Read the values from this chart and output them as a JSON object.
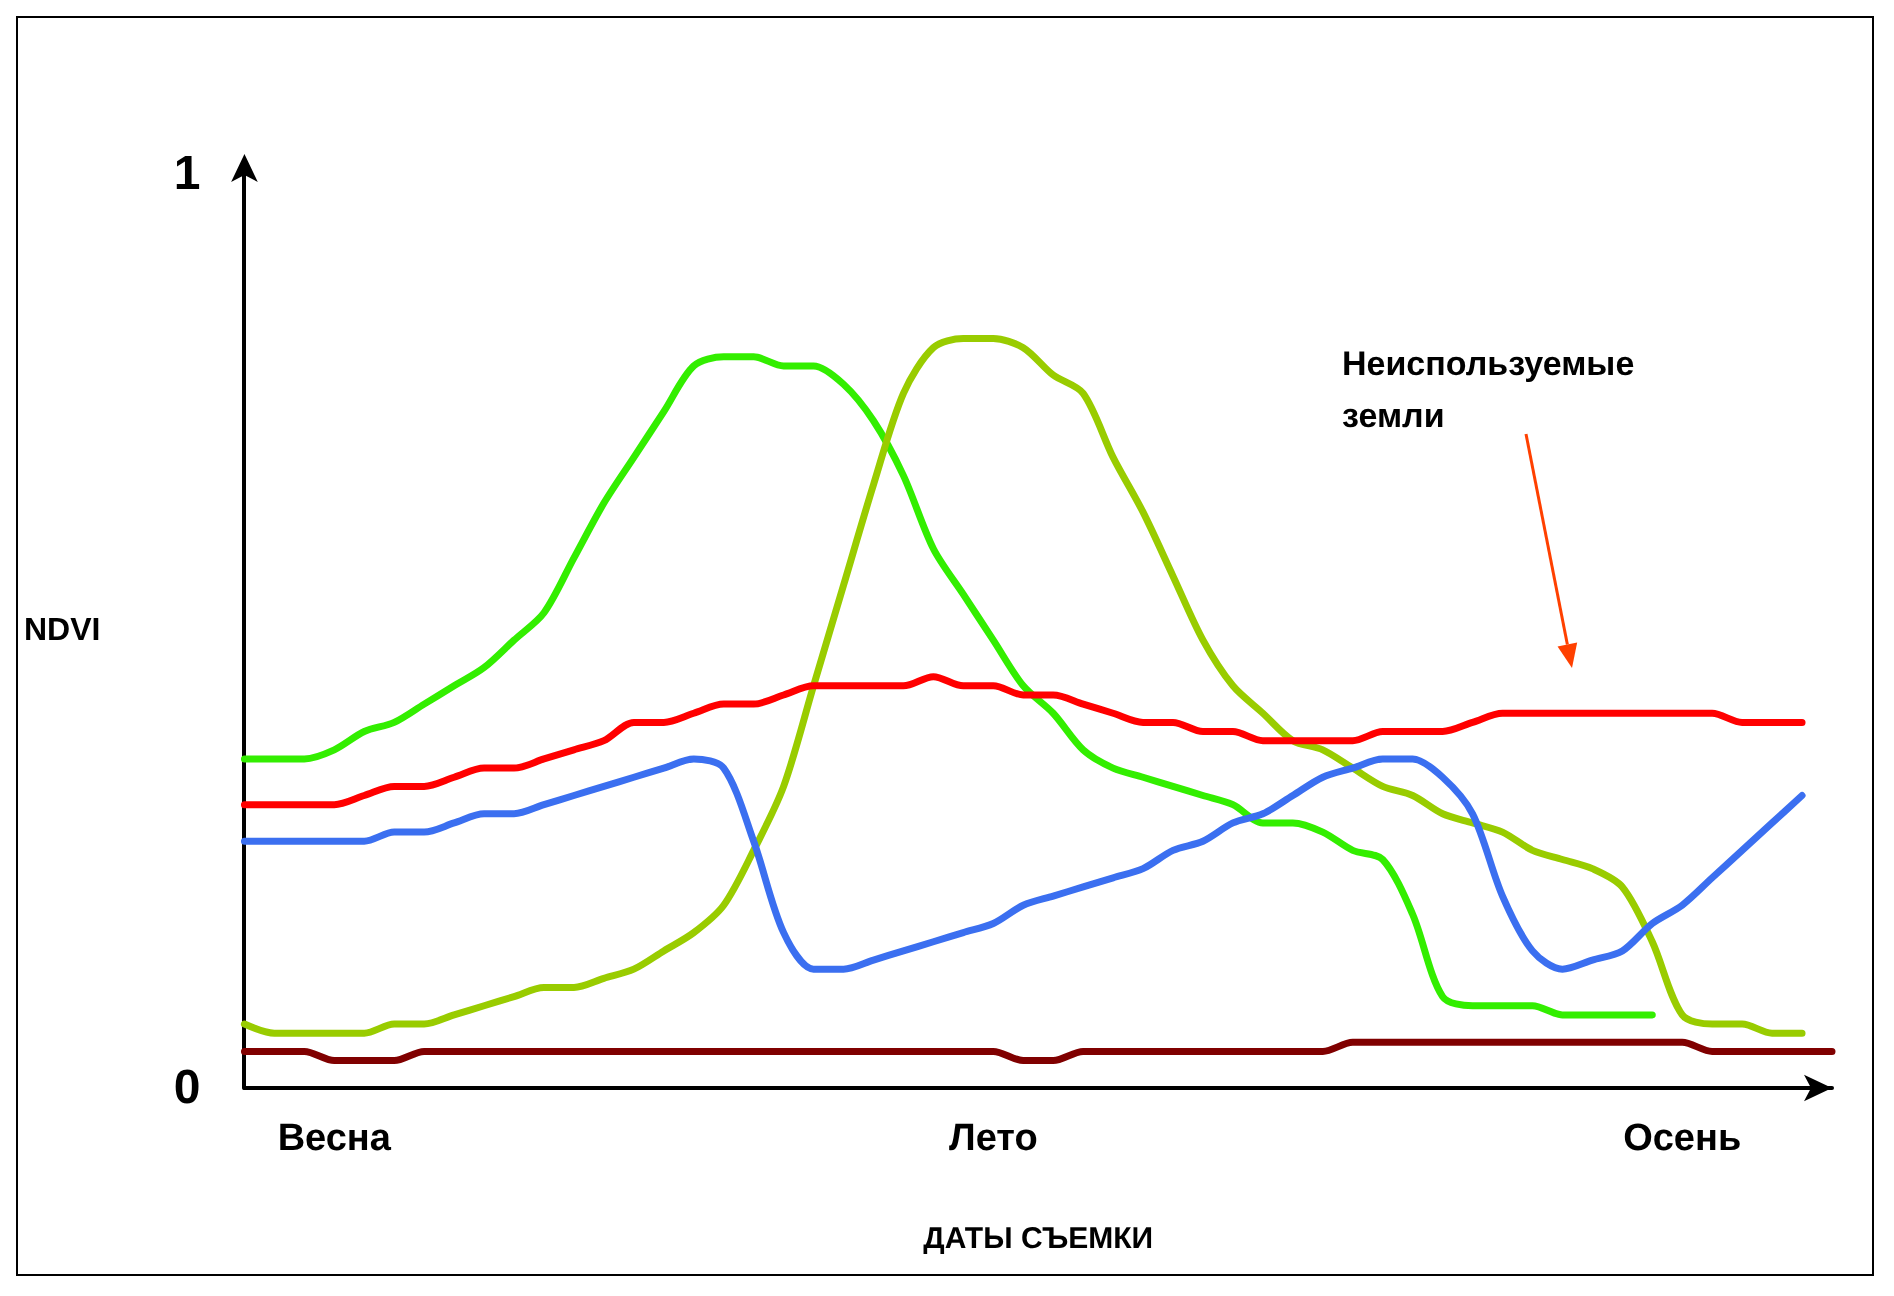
{
  "chart_data": {
    "type": "line",
    "xlabel": "ДАТЫ СЪЕМКИ",
    "ylabel": "NDVI",
    "categories": [
      null,
      null,
      null,
      "Весна",
      null,
      null,
      null,
      null,
      null,
      null,
      null,
      null,
      null,
      null,
      null,
      null,
      null,
      null,
      null,
      null,
      null,
      null,
      null,
      null,
      null,
      "Лето",
      null,
      null,
      null,
      null,
      null,
      null,
      null,
      null,
      null,
      null,
      null,
      null,
      null,
      null,
      null,
      null,
      null,
      null,
      null,
      null,
      null,
      null,
      "Осень",
      null,
      null,
      null,
      null,
      null
    ],
    "ylim": [
      0,
      1
    ],
    "yticks": [
      0,
      1
    ],
    "grid": false,
    "marker": "none",
    "line_style": "solid",
    "series": [
      {
        "color": "#33ee00",
        "values": [
          0.36,
          0.36,
          0.36,
          0.37,
          0.39,
          0.4,
          0.42,
          0.44,
          0.46,
          0.49,
          0.52,
          0.58,
          0.64,
          0.69,
          0.74,
          0.79,
          0.8,
          0.8,
          0.79,
          0.79,
          0.77,
          0.73,
          0.67,
          0.59,
          0.54,
          0.49,
          0.44,
          0.41,
          0.37,
          0.35,
          0.34,
          0.33,
          0.32,
          0.31,
          0.29,
          0.29,
          0.28,
          0.26,
          0.25,
          0.19,
          0.1,
          0.09,
          0.09,
          0.09,
          0.08,
          0.08,
          0.08,
          0.08,
          null,
          null,
          null,
          null,
          null,
          null
        ]
      },
      {
        "color": "#99cc00",
        "values": [
          0.07,
          0.06,
          0.06,
          0.06,
          0.06,
          0.07,
          0.07,
          0.08,
          0.09,
          0.1,
          0.11,
          0.11,
          0.12,
          0.13,
          0.15,
          0.17,
          0.2,
          0.26,
          0.33,
          0.44,
          0.55,
          0.66,
          0.76,
          0.81,
          0.82,
          0.82,
          0.81,
          0.78,
          0.76,
          0.69,
          0.63,
          0.56,
          0.49,
          0.44,
          0.41,
          0.38,
          0.37,
          0.35,
          0.33,
          0.32,
          0.3,
          0.29,
          0.28,
          0.26,
          0.25,
          0.24,
          0.22,
          0.16,
          0.08,
          0.07,
          0.07,
          0.06,
          0.06,
          null
        ]
      },
      {
        "color": "#ff0000",
        "values": [
          0.31,
          0.31,
          0.31,
          0.31,
          0.32,
          0.33,
          0.33,
          0.34,
          0.35,
          0.35,
          0.36,
          0.37,
          0.38,
          0.4,
          0.4,
          0.41,
          0.42,
          0.42,
          0.43,
          0.44,
          0.44,
          0.44,
          0.44,
          0.45,
          0.44,
          0.44,
          0.43,
          0.43,
          0.42,
          0.41,
          0.4,
          0.4,
          0.39,
          0.39,
          0.38,
          0.38,
          0.38,
          0.38,
          0.39,
          0.39,
          0.39,
          0.4,
          0.41,
          0.41,
          0.41,
          0.41,
          0.41,
          0.41,
          0.41,
          0.41,
          0.4,
          0.4,
          0.4,
          null
        ]
      },
      {
        "color": "#3b6ff0",
        "values": [
          0.27,
          0.27,
          0.27,
          0.27,
          0.27,
          0.28,
          0.28,
          0.29,
          0.3,
          0.3,
          0.31,
          0.32,
          0.33,
          0.34,
          0.35,
          0.36,
          0.35,
          0.27,
          0.17,
          0.13,
          0.13,
          0.14,
          0.15,
          0.16,
          0.17,
          0.18,
          0.2,
          0.21,
          0.22,
          0.23,
          0.24,
          0.26,
          0.27,
          0.29,
          0.3,
          0.32,
          0.34,
          0.35,
          0.36,
          0.36,
          0.34,
          0.3,
          0.21,
          0.15,
          0.13,
          0.14,
          0.15,
          0.18,
          0.2,
          0.23,
          0.26,
          0.29,
          0.32,
          null
        ]
      },
      {
        "color": "#800000",
        "values": [
          0.04,
          0.04,
          0.04,
          0.03,
          0.03,
          0.03,
          0.04,
          0.04,
          0.04,
          0.04,
          0.04,
          0.04,
          0.04,
          0.04,
          0.04,
          0.04,
          0.04,
          0.04,
          0.04,
          0.04,
          0.04,
          0.04,
          0.04,
          0.04,
          0.04,
          0.04,
          0.03,
          0.03,
          0.04,
          0.04,
          0.04,
          0.04,
          0.04,
          0.04,
          0.04,
          0.04,
          0.04,
          0.05,
          0.05,
          0.05,
          0.05,
          0.05,
          0.05,
          0.05,
          0.05,
          0.05,
          0.05,
          0.05,
          0.05,
          0.04,
          0.04,
          0.04,
          0.04,
          0.04
        ]
      }
    ],
    "annotations": [
      "Неиспользуемые\nземли"
    ]
  }
}
